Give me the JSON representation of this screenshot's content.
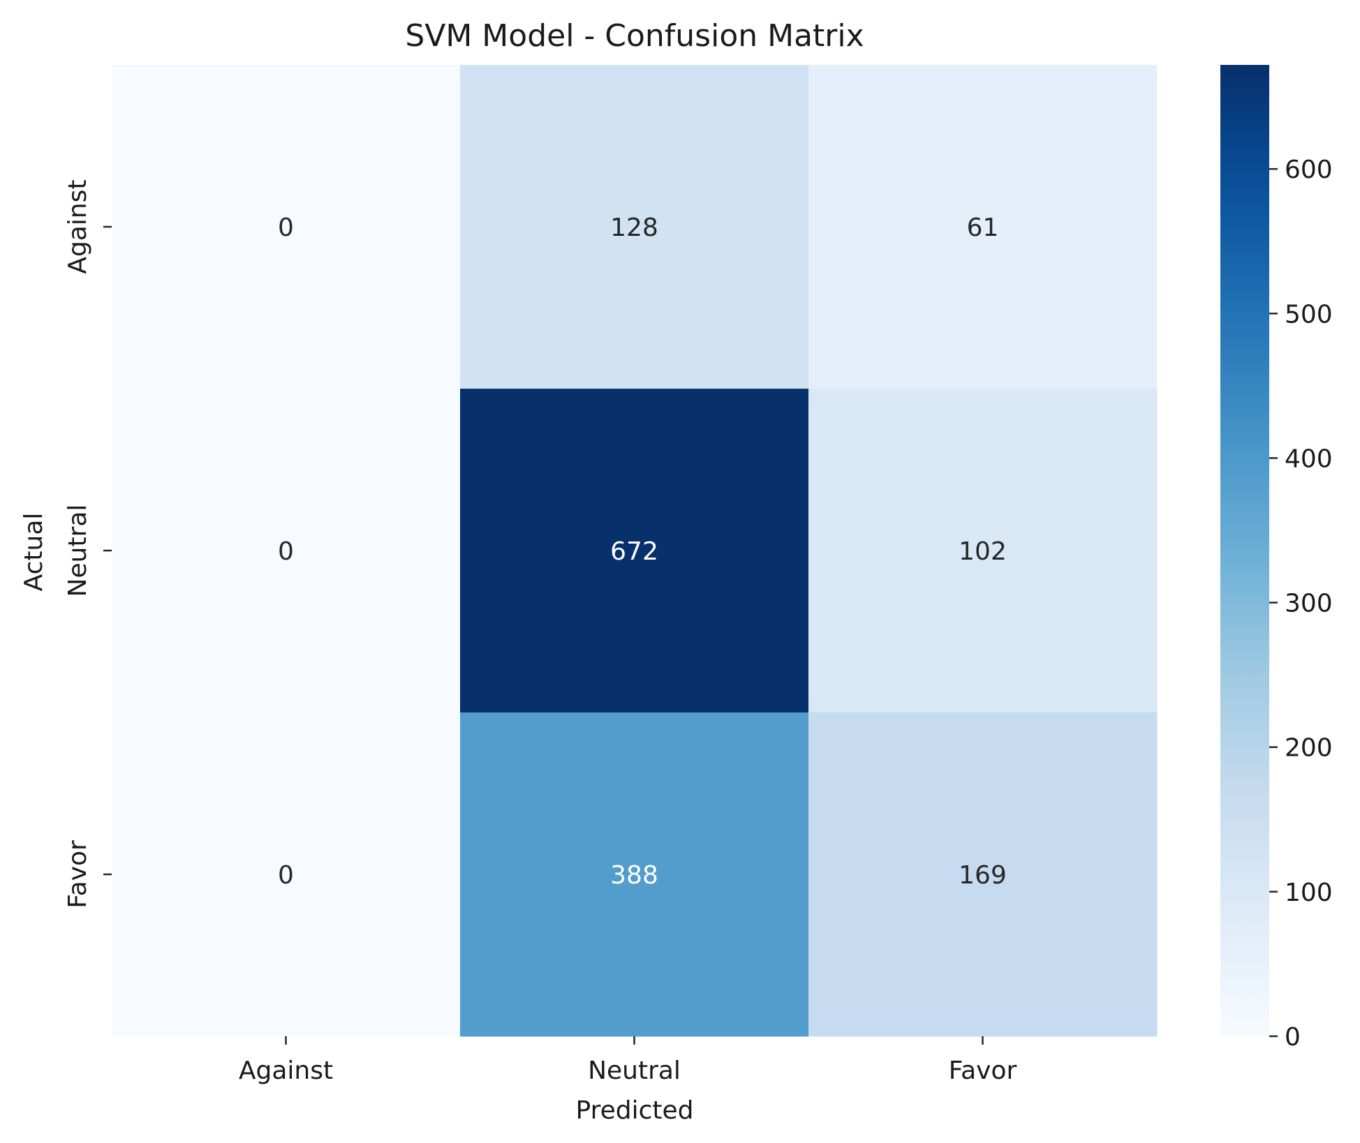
{
  "chart_data": {
    "type": "heatmap",
    "title": "SVM Model - Confusion Matrix",
    "xlabel": "Predicted",
    "ylabel": "Actual",
    "x_categories": [
      "Against",
      "Neutral",
      "Favor"
    ],
    "y_categories": [
      "Against",
      "Neutral",
      "Favor"
    ],
    "values": [
      [
        0,
        128,
        61
      ],
      [
        0,
        672,
        102
      ],
      [
        0,
        388,
        169
      ]
    ],
    "colorscale": "Blues",
    "vmin": 0,
    "vmax": 672,
    "colorbar_ticks": [
      "0",
      "100",
      "200",
      "300",
      "400",
      "500",
      "600"
    ],
    "legend": "colorbar right",
    "grid": false
  }
}
